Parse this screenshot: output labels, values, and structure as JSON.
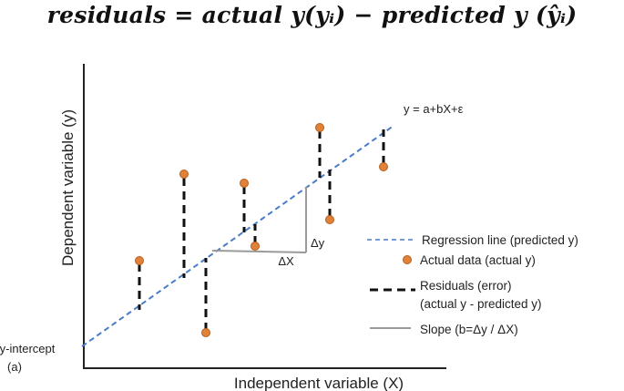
{
  "formula": {
    "text": "residuals = actual y(yᵢ) − predicted y (ŷᵢ)"
  },
  "diagram": {
    "y_axis_label": "Dependent variable (y)",
    "x_axis_label": "Independent variable (X)",
    "equation_label": "y = a+bX+ε",
    "intercept_label_line1": "y-intercept",
    "intercept_label_line2": "(a)",
    "delta_y_label": "Δy",
    "delta_x_label": "ΔX"
  },
  "legend": {
    "regression": "Regression line (predicted y)",
    "actual": "Actual data (actual y)",
    "residuals_line1": "Residuals (error)",
    "residuals_line2": "(actual y - predicted y)",
    "slope": "Slope (b=Δy / ΔX)"
  },
  "colors": {
    "regression_line": "#4a7cc7",
    "point": "#e0823a",
    "point_stroke": "#b55e1c",
    "residual": "#111111",
    "slope": "#9a9a9a"
  }
}
